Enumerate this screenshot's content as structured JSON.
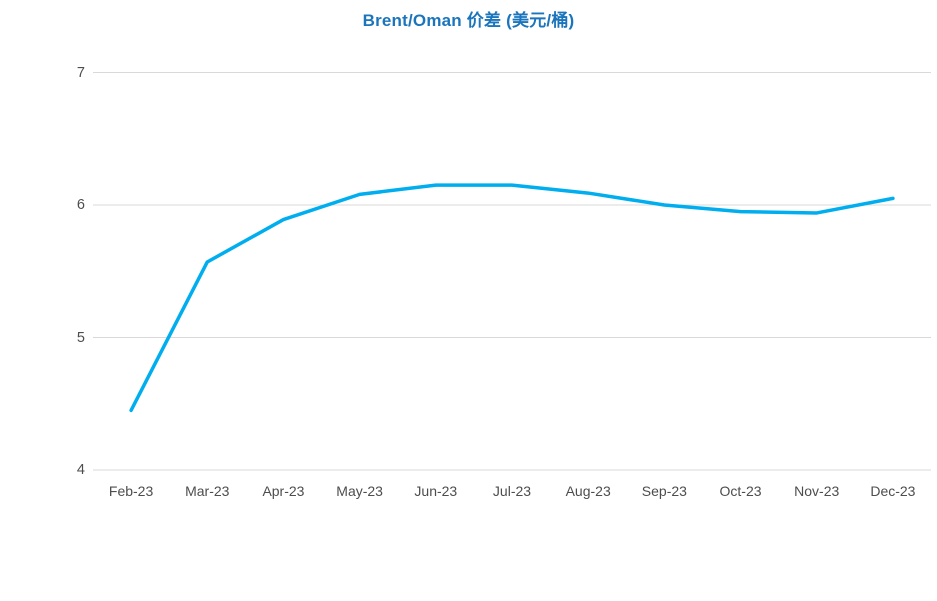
{
  "title": "Brent/Oman 价差 (美元/桶)",
  "colors": {
    "title": "#1B75BC",
    "line": "#00AEEF",
    "gridline": "#D9D9D9",
    "axis_label": "#4d4d4d",
    "background": "#FFFFFF"
  },
  "chart_data": {
    "type": "line",
    "title": "Brent/Oman 价差 (美元/桶)",
    "categories": [
      "Feb-23",
      "Mar-23",
      "Apr-23",
      "May-23",
      "Jun-23",
      "Jul-23",
      "Aug-23",
      "Sep-23",
      "Oct-23",
      "Nov-23",
      "Dec-23"
    ],
    "values": [
      4.45,
      5.57,
      5.89,
      6.08,
      6.15,
      6.15,
      6.09,
      6.0,
      5.95,
      5.94,
      6.05
    ],
    "xlabel": "",
    "ylabel": "",
    "ylim": [
      4,
      7
    ],
    "yticks": [
      4,
      5,
      6,
      7
    ],
    "grid": "horizontal-only",
    "legend": "none",
    "line_width": 3.5
  }
}
